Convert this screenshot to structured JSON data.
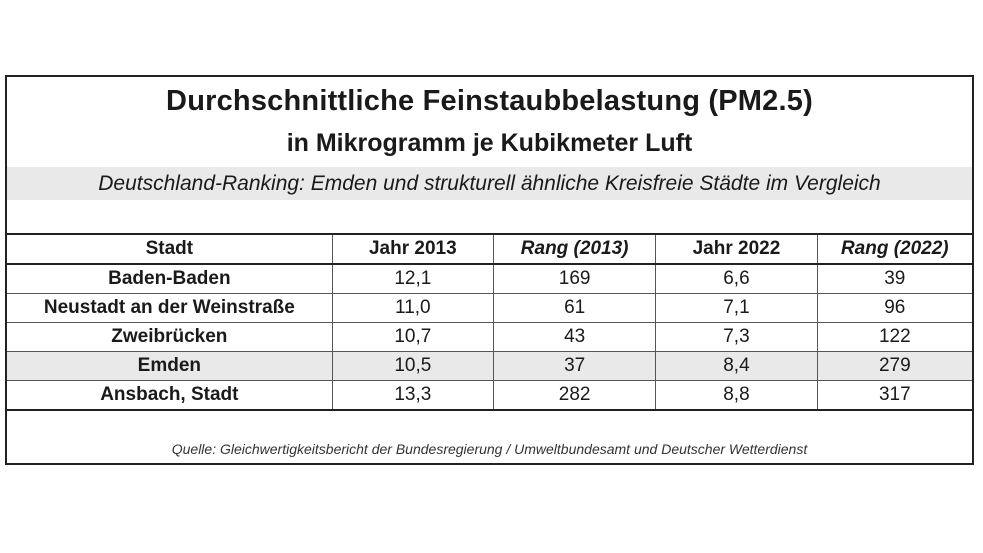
{
  "chart_data": {
    "type": "table",
    "title": "Durchschnittliche Feinstaubbelastung (PM2.5)",
    "subtitle": "in Mikrogramm je Kubikmeter Luft",
    "caption": "Deutschland-Ranking: Emden und strukturell ähnliche Kreisfreie Städte im Vergleich",
    "columns": [
      "Stadt",
      "Jahr 2013",
      "Rang (2013)",
      "Jahr 2022",
      "Rang (2022)"
    ],
    "rows": [
      {
        "city": "Baden-Baden",
        "pm_2013": "12,1",
        "rank_2013": "169",
        "pm_2022": "6,6",
        "rank_2022": "39"
      },
      {
        "city": "Neustadt an der Weinstraße",
        "pm_2013": "11,0",
        "rank_2013": "61",
        "pm_2022": "7,1",
        "rank_2022": "96"
      },
      {
        "city": "Zweibrücken",
        "pm_2013": "10,7",
        "rank_2013": "43",
        "pm_2022": "7,3",
        "rank_2022": "122"
      },
      {
        "city": "Emden",
        "pm_2013": "10,5",
        "rank_2013": "37",
        "pm_2022": "8,4",
        "rank_2022": "279"
      },
      {
        "city": "Ansbach, Stadt",
        "pm_2013": "13,3",
        "rank_2013": "282",
        "pm_2022": "8,8",
        "rank_2022": "317"
      }
    ],
    "highlight_row": "Emden",
    "highlight_color": "#e9e9e9",
    "source": "Quelle: Gleichwertigkeitsbericht der Bundesregierung / Umweltbundesamt und Deutscher Wetterdienst"
  }
}
